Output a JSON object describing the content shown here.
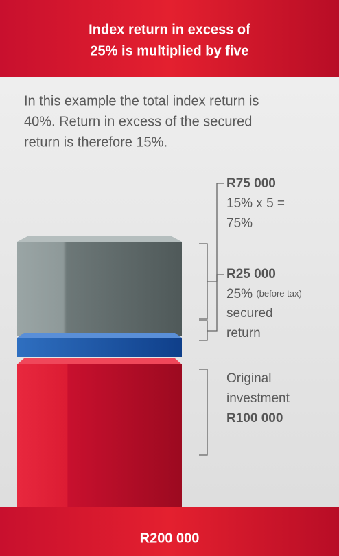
{
  "header": {
    "title_lines": [
      "Index return in excess of",
      "25% is multiplied by five"
    ]
  },
  "intro_lines": [
    "In this example the total index return is",
    "40%. Return in excess of the secured",
    "return is therefore 15%."
  ],
  "labels": [
    {
      "amount": "R75 000",
      "lines": [
        "15% x 5 =",
        "75%"
      ]
    },
    {
      "amount": "R25 000",
      "first": "25%",
      "note": "(before tax)",
      "lines": [
        "secured",
        "return"
      ]
    },
    {
      "lines": [
        "Original",
        "investment"
      ],
      "amount": "R100 000"
    }
  ],
  "footer": {
    "total": "R200 000"
  }
}
